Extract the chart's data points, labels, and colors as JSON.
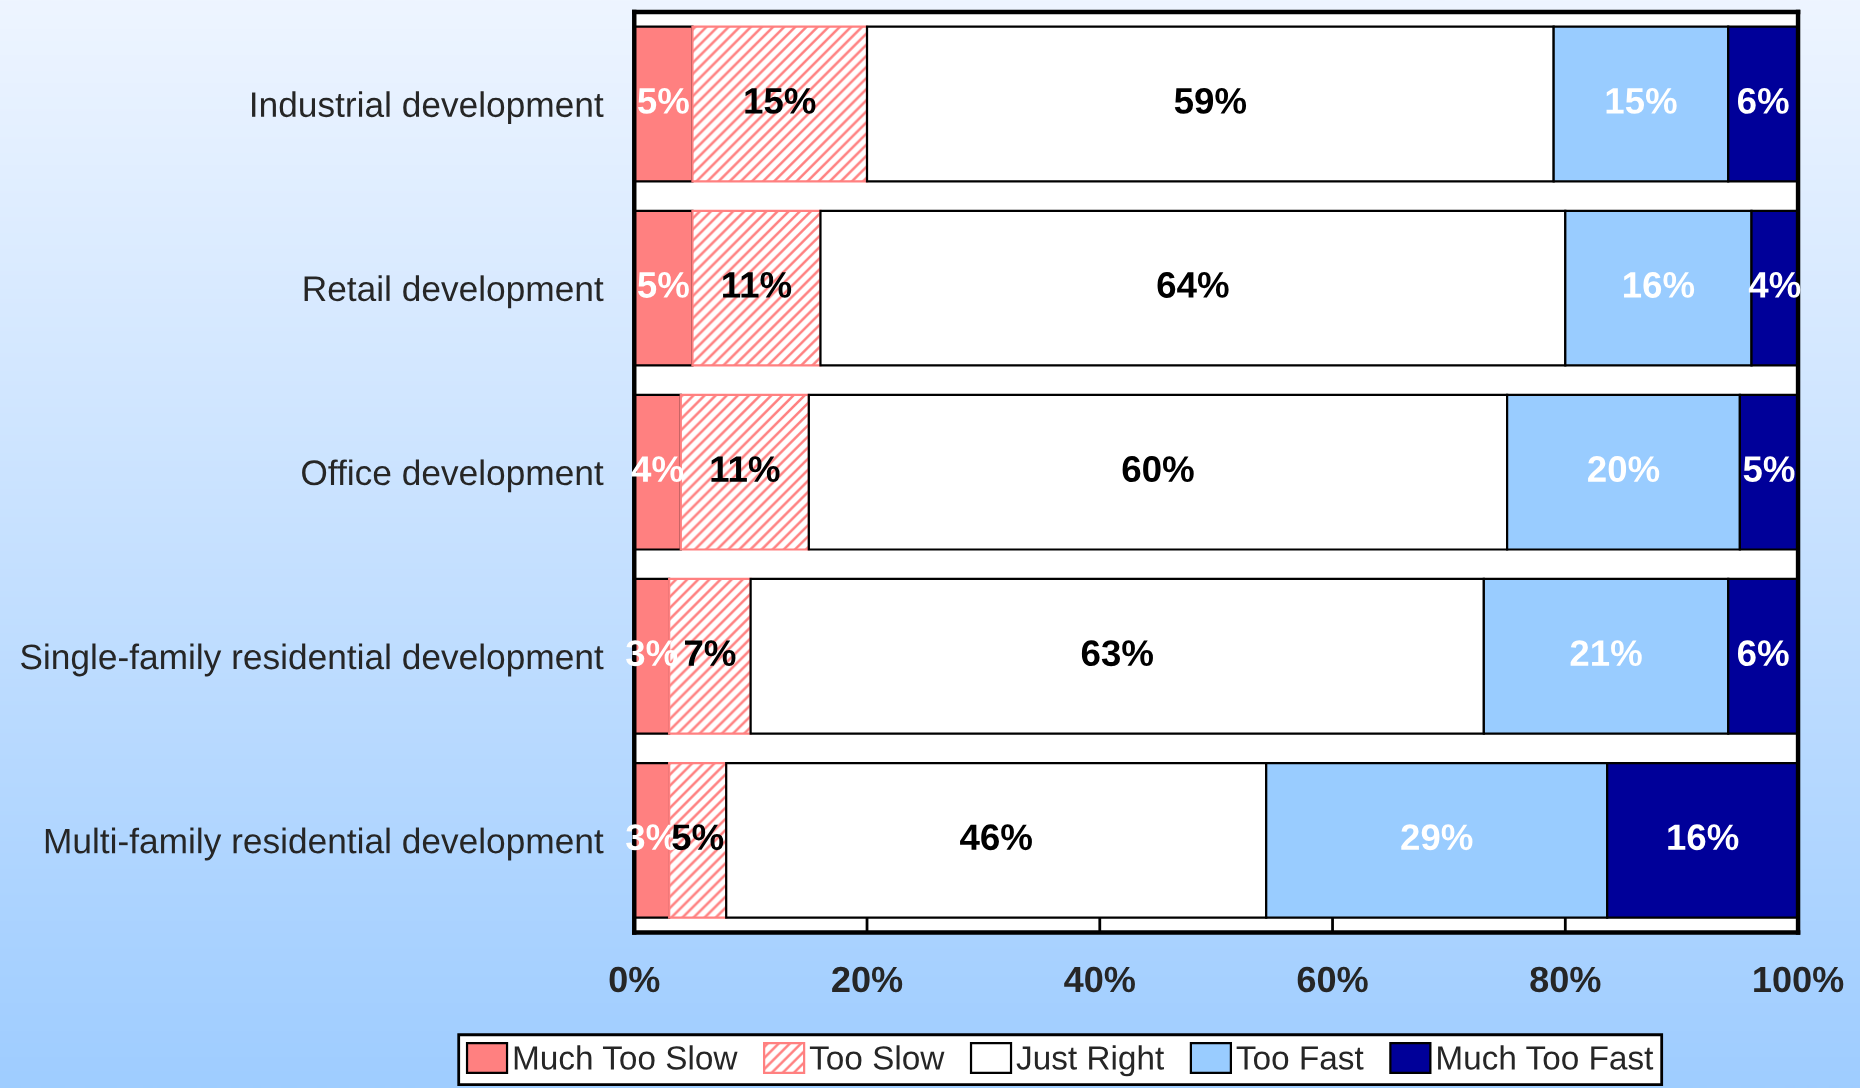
{
  "chart_data": {
    "type": "bar",
    "orientation": "horizontal",
    "stacked": true,
    "categories": [
      "Industrial development",
      "Retail development",
      "Office development",
      "Single-family residential development",
      "Multi-family residential development"
    ],
    "series": [
      {
        "name": "Much Too Slow",
        "color": "#ff8080",
        "values": [
          5,
          5,
          4,
          3,
          3
        ],
        "value_labels": [
          "5%",
          "5%",
          "4%",
          "3%",
          "3%"
        ]
      },
      {
        "name": "Too Slow",
        "color": "#ff8080",
        "values": [
          15,
          11,
          11,
          7,
          4.9
        ],
        "value_labels": [
          "15%",
          "11%",
          "11%",
          "7%",
          "5%"
        ]
      },
      {
        "name": "Just Right",
        "color": "#ffffff",
        "values": [
          59,
          64,
          60,
          63,
          46.4
        ],
        "value_labels": [
          "59%",
          "64%",
          "60%",
          "63%",
          "46%"
        ]
      },
      {
        "name": "Too Fast",
        "color": "#99ccff",
        "values": [
          15,
          16,
          20,
          21,
          29.3
        ],
        "value_labels": [
          "15%",
          "16%",
          "20%",
          "21%",
          "29%"
        ]
      },
      {
        "name": "Much Too Fast",
        "color": "#000099",
        "values": [
          6,
          4,
          5,
          6,
          16.4
        ],
        "value_labels": [
          "6%",
          "4%",
          "5%",
          "6%",
          "16%"
        ]
      }
    ],
    "xlim": [
      0,
      100
    ],
    "xticks": [
      {
        "value": 0,
        "label": "0%"
      },
      {
        "value": 20,
        "label": "20%"
      },
      {
        "value": 40,
        "label": "40%"
      },
      {
        "value": 60,
        "label": "60%"
      },
      {
        "value": 80,
        "label": "80%"
      },
      {
        "value": 100,
        "label": "100%"
      }
    ],
    "legend": "bottom"
  }
}
